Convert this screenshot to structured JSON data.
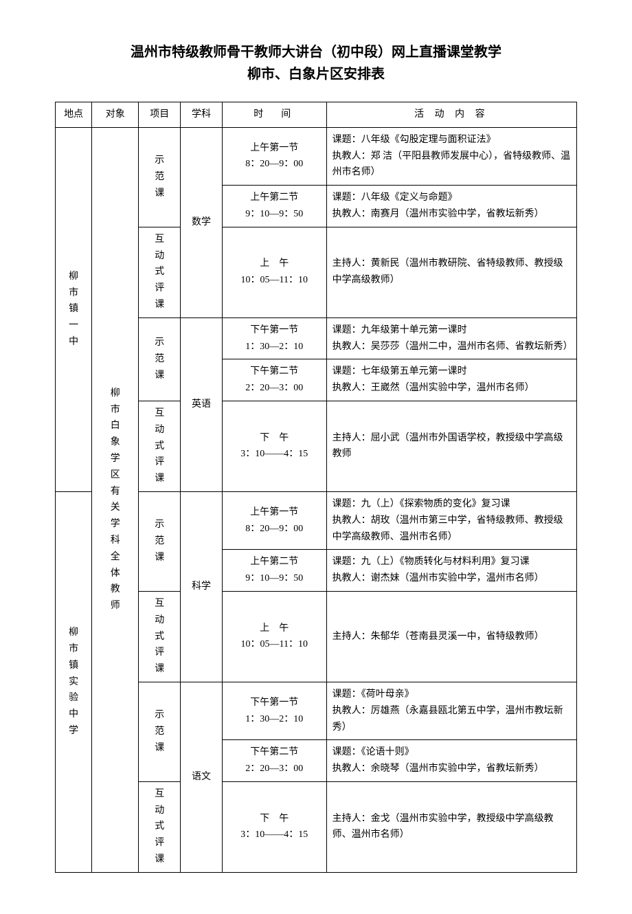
{
  "title_line1": "温州市特级教师骨干教师大讲台（初中段）网上直播课堂教学",
  "title_line2": "柳市、白象片区安排表",
  "headers": {
    "loc": "地点",
    "aud": "对象",
    "proj": "项目",
    "subj": "学科",
    "time": "时　间",
    "act": "活 动 内 容"
  },
  "audience": "柳市白象学区有关学科全体教师",
  "loc1": "柳市镇一中",
  "loc2": "柳市镇实验中学",
  "proj_demo": "示范课",
  "proj_review": "互动式评课",
  "subj_math": "数学",
  "subj_eng": "英语",
  "subj_sci": "科学",
  "subj_chi": "语文",
  "rows": [
    {
      "time": "上午第一节\n8：20—9：00",
      "act": "课题：八年级《勾股定理与面积证法》\n执教人：郑 洁（平阳县教师发展中心），省特级教师、温州市名师）"
    },
    {
      "time": "上午第二节\n9：10—9：50",
      "act": "课题：八年级《定义与命题》\n执教人：南赛月（温州市实验中学，省教坛新秀）"
    },
    {
      "time": "上　午\n10：05—11：10",
      "act": "主持人：黄新民（温州市教研院、省特级教师、教授级中学高级教师）"
    },
    {
      "time": "下午第一节\n1：30—2：10",
      "act": "课题：九年级第十单元第一课时\n执教人：吴莎莎（温州二中，温州市名师、省教坛新秀）"
    },
    {
      "time": "下午第二节\n2：20—3：00",
      "act": "课题：七年级第五单元第一课时\n执教人：王崴然（温州实验中学，温州市名师）"
    },
    {
      "time": "下　午\n3：10——4：15",
      "act": "主持人：屈小武（温州市外国语学校，教授级中学高级教师"
    },
    {
      "time": "上午第一节\n8：20—9：00",
      "act": "课题：九（上）《探索物质的变化》复习课\n执教人：胡玫（温州市第三中学，省特级教师、教授级中学高级教师、温州市名师）"
    },
    {
      "time": "上午第二节\n9：10—9：50",
      "act": "课题：九（上）《物质转化与材料利用》复习课\n执教人：谢杰妹（温州市实验中学，温州市名师）"
    },
    {
      "time": "上　午\n10：05—11：10",
      "act": "主持人：朱郁华（苍南县灵溪一中，省特级教师）"
    },
    {
      "time": "下午第一节\n1：30—2：10",
      "act": "课题：《荷叶母亲》\n执教人：厉雄燕（永嘉县瓯北第五中学，温州市教坛新秀）"
    },
    {
      "time": "下午第二节\n2：20—3：00",
      "act": "课题：《论语十则》\n执教人：余晓琴（温州市实验中学，省教坛新秀）"
    },
    {
      "time": "下　午\n3：10——4：15",
      "act": "主持人：金戈（温州市实验中学，教授级中学高级教师、温州市名师）"
    }
  ]
}
